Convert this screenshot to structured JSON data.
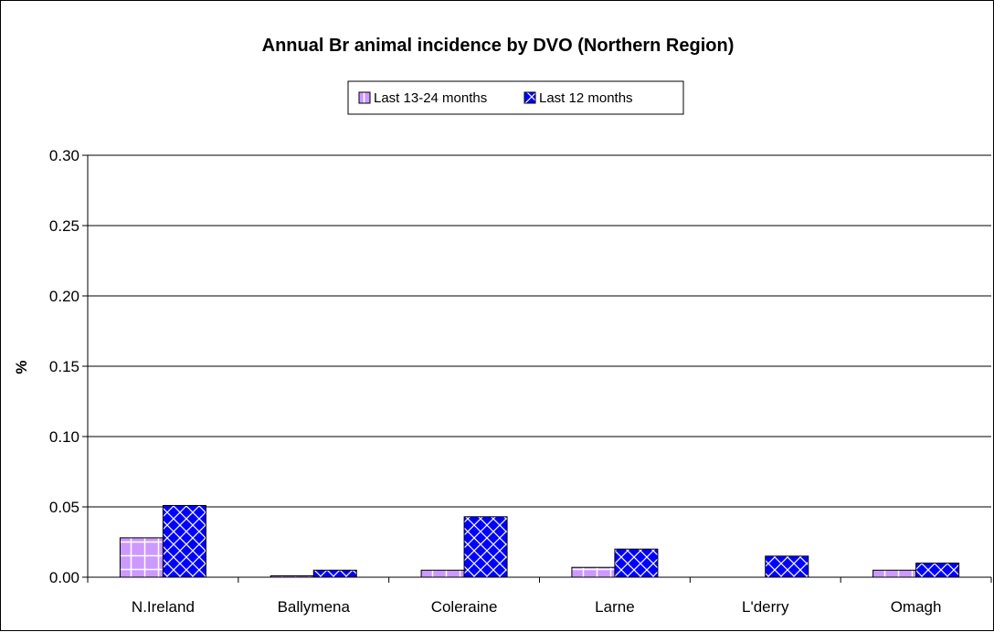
{
  "chart_data": {
    "type": "bar",
    "title": "Annual Br animal incidence by DVO (Northern Region)",
    "xlabel": "",
    "ylabel": "%",
    "ylim": [
      0,
      0.3
    ],
    "yticks": [
      "0.00",
      "0.05",
      "0.10",
      "0.15",
      "0.20",
      "0.25",
      "0.30"
    ],
    "grid": true,
    "legend_position": "top-center",
    "categories": [
      "N.Ireland",
      "Ballymena",
      "Coleraine",
      "Larne",
      "L'derry",
      "Omagh"
    ],
    "series": [
      {
        "name": "Last 13-24 months",
        "color": "#cc99ff",
        "pattern": "grid",
        "values": [
          0.028,
          0.001,
          0.005,
          0.007,
          0.0,
          0.005
        ]
      },
      {
        "name": "Last 12 months",
        "color": "#0000ff",
        "pattern": "diagonal-cross",
        "values": [
          0.051,
          0.005,
          0.043,
          0.02,
          0.015,
          0.01
        ]
      }
    ]
  }
}
